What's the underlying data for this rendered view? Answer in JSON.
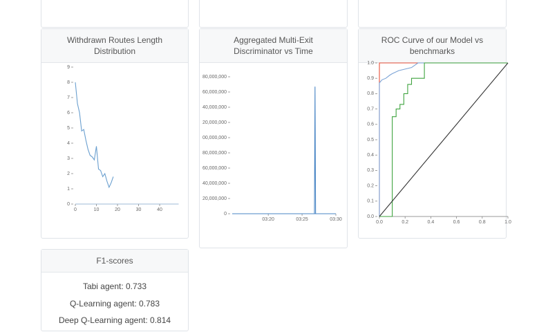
{
  "chart_data": [
    {
      "type": "line",
      "title": "Withdrawn Routes Length Distribution",
      "series": [
        {
          "color": "#6a9fcf",
          "x": [
            0,
            1,
            2,
            3,
            4,
            5,
            6,
            7,
            8,
            9,
            10,
            11,
            12,
            13,
            14,
            15,
            16,
            17,
            18
          ],
          "values": [
            8,
            6.6,
            6,
            4.8,
            4.9,
            4.2,
            3.6,
            3.2,
            3.1,
            2.9,
            3.8,
            2.3,
            2.2,
            1.8,
            2,
            1.5,
            1.1,
            1.4,
            1.8
          ]
        }
      ],
      "xlim": [
        0,
        49
      ],
      "xticks": [
        0,
        10,
        20,
        30,
        40
      ],
      "ylim": [
        0,
        9
      ],
      "yticks": [
        0,
        1,
        2,
        3,
        4,
        5,
        6,
        7,
        8,
        9
      ]
    },
    {
      "type": "line",
      "title": "Aggregated Multi-Exit Discriminator vs Time",
      "series": [
        {
          "color": "#4a86c5",
          "x": [
            "03:14:40",
            "03:26:50",
            "03:26:55",
            "03:27:00",
            "03:30:00"
          ],
          "values": [
            0,
            0,
            167000000,
            0,
            0
          ]
        }
      ],
      "xlim": [
        "03:14:40",
        "03:30:00"
      ],
      "xticks": [
        "03:20",
        "03:25",
        "03:30"
      ],
      "ylim": [
        0,
        180000000
      ],
      "yticks": [
        0,
        {
          "value": 20000000,
          "label": "20,000,000"
        },
        {
          "value": 40000000,
          "label": "40,000,000"
        },
        {
          "value": 60000000,
          "label": "60,000,000"
        },
        {
          "value": 80000000,
          "label": "80,000,000"
        },
        {
          "value": 100000000,
          "label": "00,000,000"
        },
        {
          "value": 120000000,
          "label": "20,000,000"
        },
        {
          "value": 140000000,
          "label": "40,000,000"
        },
        {
          "value": 160000000,
          "label": "60,000,000"
        },
        {
          "value": 180000000,
          "label": "80,000,000"
        }
      ]
    },
    {
      "type": "line",
      "title": "ROC Curve of our Model vs benchmarks",
      "series": [
        {
          "color": "#e8503a",
          "x": [
            0,
            0,
            0.3,
            1
          ],
          "values": [
            0,
            1,
            1,
            1
          ]
        },
        {
          "color": "#7ba3d6",
          "x": [
            0,
            0,
            0.02,
            0.05,
            0.08,
            0.1,
            0.15,
            0.2,
            0.25,
            0.3,
            1
          ],
          "values": [
            0,
            0.87,
            0.89,
            0.9,
            0.92,
            0.93,
            0.95,
            0.96,
            0.97,
            1,
            1
          ]
        },
        {
          "color": "#3ea33e",
          "x": [
            0,
            0.1,
            0.1,
            0.13,
            0.13,
            0.16,
            0.16,
            0.19,
            0.19,
            0.22,
            0.22,
            0.25,
            0.25,
            0.35,
            0.35,
            1
          ],
          "values": [
            0,
            0,
            0.65,
            0.65,
            0.7,
            0.7,
            0.73,
            0.73,
            0.8,
            0.8,
            0.86,
            0.86,
            0.9,
            0.9,
            1,
            1
          ]
        },
        {
          "color": "#333333",
          "x": [
            0,
            1
          ],
          "values": [
            0,
            1
          ]
        }
      ],
      "xlim": [
        0,
        1
      ],
      "xticks": [
        {
          "value": 0,
          "label": "0.0"
        },
        0.2,
        0.4,
        0.6,
        0.8,
        {
          "value": 1,
          "label": "1.0"
        }
      ],
      "ylim": [
        0,
        1
      ],
      "yticks": [
        {
          "value": 0,
          "label": "0.0"
        },
        0.1,
        0.2,
        0.3,
        0.4,
        0.5,
        0.6,
        0.7,
        0.8,
        0.9,
        {
          "value": 1,
          "label": "1.0"
        }
      ]
    }
  ],
  "f1": {
    "title": "F1-scores",
    "items": [
      "Tabi agent: 0.733",
      "Q-Learning agent: 0.783",
      "Deep Q-Learning agent: 0.814"
    ]
  }
}
